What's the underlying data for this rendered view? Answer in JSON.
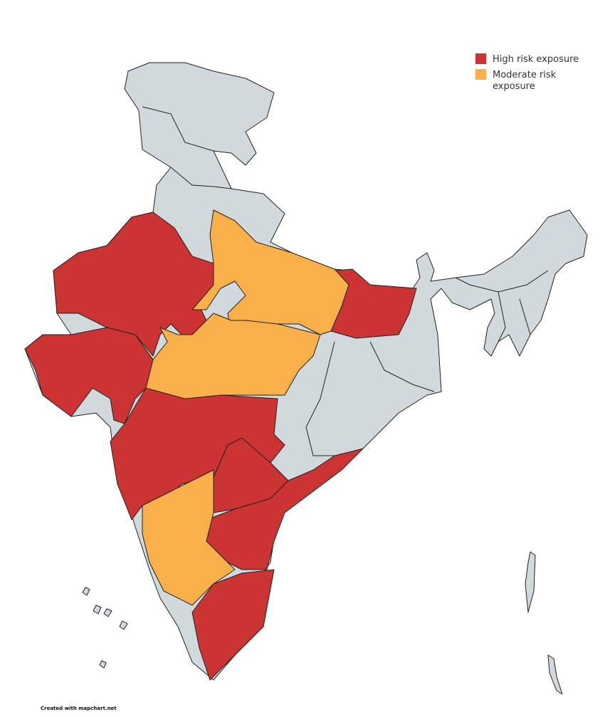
{
  "legend": [
    {
      "label": "High risk exposure",
      "color": "#cc3333"
    },
    {
      "label": "Moderate risk exposure",
      "color": "#f9b04a"
    }
  ],
  "credit": "Created with mapchart.net"
}
